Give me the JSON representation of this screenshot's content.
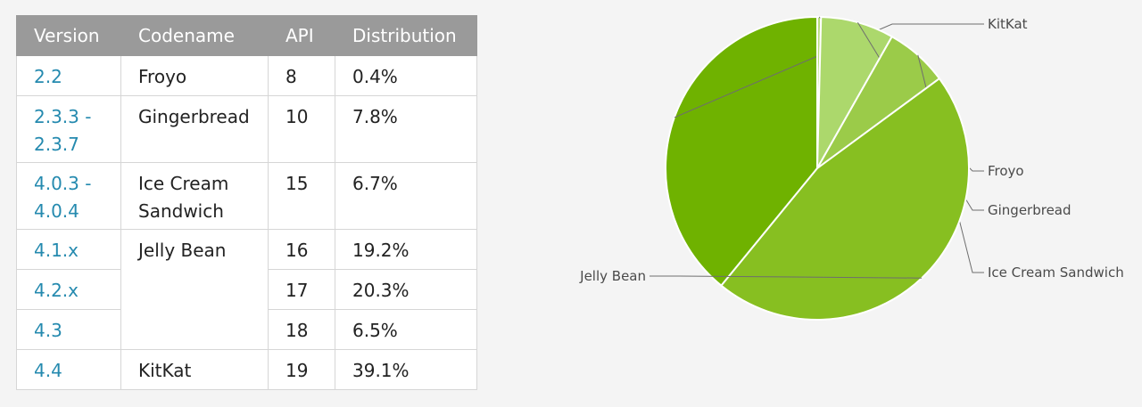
{
  "table": {
    "headers": [
      "Version",
      "Codename",
      "API",
      "Distribution"
    ],
    "rows": [
      {
        "version": "2.2",
        "codename": "Froyo",
        "api": "8",
        "distribution": "0.4%"
      },
      {
        "version": "2.3.3 - 2.3.7",
        "codename": "Gingerbread",
        "api": "10",
        "distribution": "7.8%"
      },
      {
        "version": "4.0.3 - 4.0.4",
        "codename": "Ice Cream Sandwich",
        "api": "15",
        "distribution": "6.7%"
      },
      {
        "version": "4.1.x",
        "codename": "Jelly Bean",
        "api": "16",
        "distribution": "19.2%"
      },
      {
        "version": "4.2.x",
        "api": "17",
        "distribution": "20.3%"
      },
      {
        "version": "4.3",
        "api": "18",
        "distribution": "6.5%"
      },
      {
        "version": "4.4",
        "codename": "KitKat",
        "api": "19",
        "distribution": "39.1%"
      }
    ]
  },
  "chart_data": {
    "type": "pie",
    "categories": [
      "KitKat",
      "Froyo",
      "Gingerbread",
      "Ice Cream Sandwich",
      "Jelly Bean"
    ],
    "values": [
      39.1,
      0.4,
      7.8,
      6.7,
      46.0
    ],
    "colors": [
      "#6fb200",
      "#b8dc7c",
      "#acd86c",
      "#9bcb49",
      "#87bf21"
    ]
  }
}
